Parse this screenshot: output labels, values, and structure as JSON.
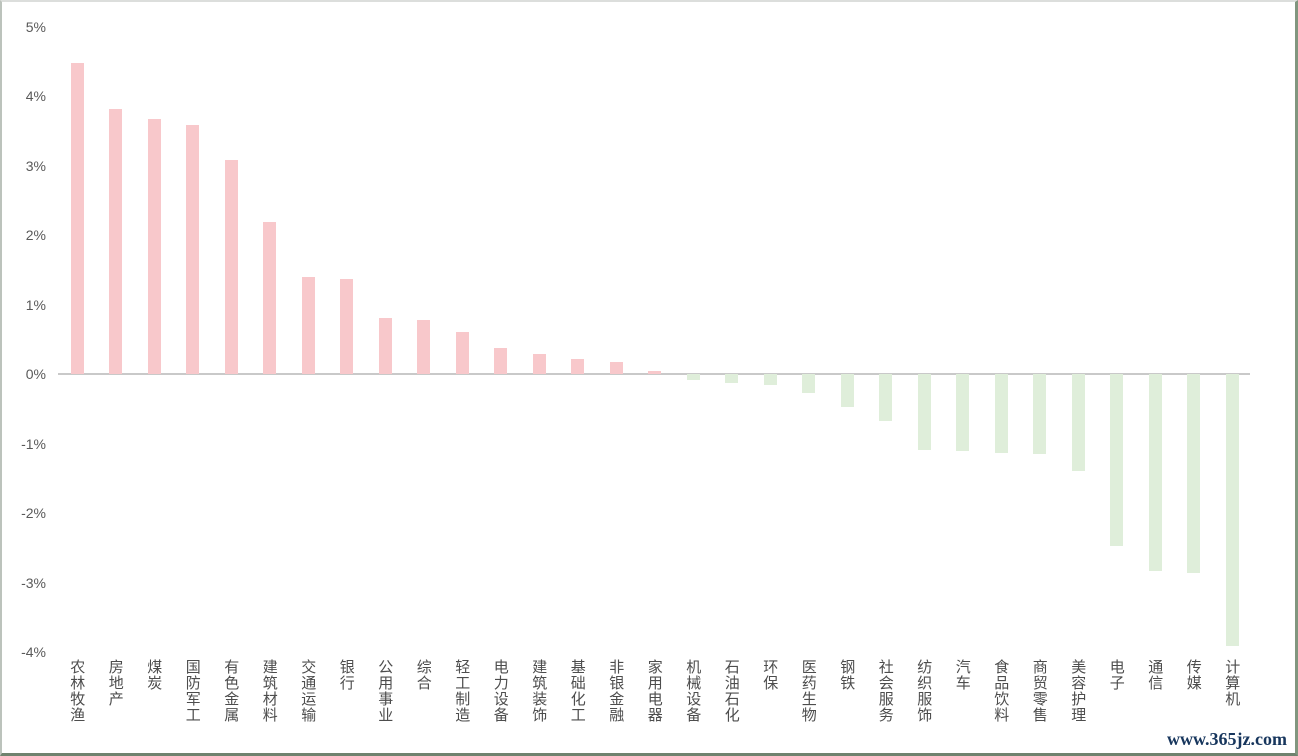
{
  "chart_data": {
    "type": "bar",
    "title": "",
    "xlabel": "",
    "ylabel": "",
    "categories": [
      "农林牧渔",
      "房地产",
      "煤炭",
      "国防军工",
      "有色金属",
      "建筑材料",
      "交通运输",
      "银行",
      "公用事业",
      "综合",
      "轻工制造",
      "电力设备",
      "建筑装饰",
      "基础化工",
      "非银金融",
      "家用电器",
      "机械设备",
      "石油石化",
      "环保",
      "医药生物",
      "钢铁",
      "社会服务",
      "纺织服饰",
      "汽车",
      "食品饮料",
      "商贸零售",
      "美容护理",
      "电子",
      "通信",
      "传媒",
      "计算机"
    ],
    "values": [
      4.47,
      3.81,
      3.67,
      3.58,
      3.08,
      2.19,
      1.39,
      1.36,
      0.81,
      0.78,
      0.61,
      0.38,
      0.29,
      0.22,
      0.17,
      0.04,
      -0.08,
      -0.13,
      -0.16,
      -0.28,
      -0.48,
      -0.67,
      -1.1,
      -1.11,
      -1.13,
      -1.15,
      -1.4,
      -2.48,
      -2.84,
      -2.87,
      -3.91
    ],
    "ytick_values": [
      5,
      4,
      3,
      2,
      1,
      0,
      -1,
      -2,
      -3,
      -4
    ],
    "ytick_labels": [
      "5%",
      "4%",
      "3%",
      "2%",
      "1%",
      "0%",
      "-1%",
      "-2%",
      "-3%",
      "-4%"
    ],
    "ylim": [
      -4.35,
      5.35
    ],
    "grid": false,
    "legend_position": "none",
    "colors": {
      "positive_bar": "#f8c8cb",
      "negative_bar": "#dfeeda",
      "axis_line": "#c9c9c9",
      "tick_text": "#595959",
      "category_text": "#4d4d4d"
    }
  },
  "watermark": {
    "text": "www.365jz.com",
    "color": "#17365d"
  }
}
